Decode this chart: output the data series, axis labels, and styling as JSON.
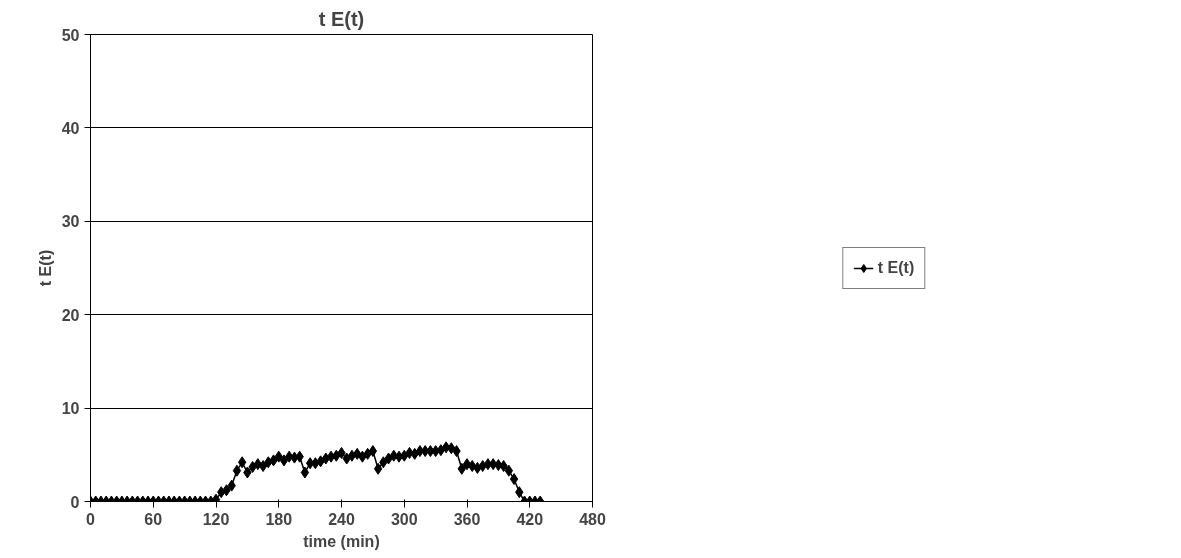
{
  "chart_data": {
    "type": "line",
    "title": "t E(t)",
    "xlabel": "time (min)",
    "ylabel": "t E(t)",
    "x": [
      0,
      5,
      10,
      15,
      20,
      25,
      30,
      35,
      40,
      45,
      50,
      55,
      60,
      65,
      70,
      75,
      80,
      85,
      90,
      95,
      100,
      105,
      110,
      115,
      120,
      125,
      130,
      135,
      140,
      145,
      150,
      155,
      160,
      165,
      170,
      175,
      180,
      185,
      190,
      195,
      200,
      205,
      210,
      215,
      220,
      225,
      230,
      235,
      240,
      245,
      250,
      255,
      260,
      265,
      270,
      275,
      280,
      285,
      290,
      295,
      300,
      305,
      310,
      315,
      320,
      325,
      330,
      335,
      340,
      345,
      350,
      355,
      360,
      365,
      370,
      375,
      380,
      385,
      390,
      395,
      400,
      405,
      410,
      415,
      420,
      425,
      430
    ],
    "series": [
      {
        "name": "t E(t)",
        "color": "#000000",
        "values": [
          0,
          0,
          0,
          0,
          0,
          0,
          0,
          0,
          0,
          0,
          0,
          0,
          0,
          0,
          0,
          0,
          0,
          0,
          0,
          0,
          0,
          0,
          0,
          0,
          0.2,
          1.0,
          1.2,
          1.7,
          3.3,
          4.2,
          3.1,
          3.7,
          4.0,
          3.8,
          4.2,
          4.4,
          4.8,
          4.4,
          4.8,
          4.7,
          4.8,
          3.1,
          4.1,
          4.1,
          4.3,
          4.6,
          4.8,
          4.9,
          5.2,
          4.6,
          4.9,
          5.1,
          4.8,
          5.1,
          5.4,
          3.5,
          4.2,
          4.6,
          4.9,
          4.8,
          4.9,
          5.2,
          5.1,
          5.4,
          5.4,
          5.4,
          5.4,
          5.5,
          5.8,
          5.7,
          5.4,
          3.5,
          4.0,
          3.8,
          3.6,
          3.8,
          4.0,
          4.0,
          3.9,
          3.8,
          3.3,
          2.4,
          1.0,
          0,
          0,
          0,
          0
        ]
      }
    ],
    "xlim": [
      0,
      480
    ],
    "xticks": [
      0,
      60,
      120,
      180,
      240,
      300,
      360,
      420,
      480
    ],
    "ylim": [
      0,
      50
    ],
    "yticks": [
      0,
      10,
      20,
      30,
      40,
      50
    ],
    "grid": "y",
    "legend": "right",
    "marker": "diamond",
    "line_style": "solid"
  }
}
